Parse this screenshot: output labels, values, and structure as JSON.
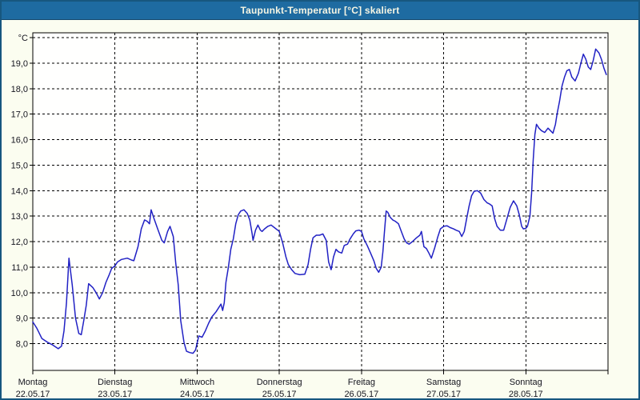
{
  "window": {
    "title": "Taupunkt-Temperatur [°C] skaliert"
  },
  "colors": {
    "titlebar_bg": "#1e6ba1",
    "window_border": "#17577f",
    "page_bg": "#fbfdf0",
    "plot_bg": "#fffffe",
    "grid": "#000000",
    "text": "#15151f",
    "line": "#2121c4",
    "title_text": "#f6f6e4"
  },
  "chart_data": {
    "type": "line",
    "title": "Taupunkt-Temperatur [°C] skaliert",
    "xlabel": "",
    "ylabel": "°C",
    "grid": "dashed",
    "legend_position": "none",
    "y_axis": {
      "min": 6.95,
      "max": 20.2,
      "gridline_values": [
        8,
        9,
        10,
        11,
        12,
        13,
        14,
        15,
        16,
        17,
        18,
        19,
        20
      ],
      "tick_labels": [
        {
          "value": 20,
          "label": "°C"
        },
        {
          "value": 19,
          "label": "19,0"
        },
        {
          "value": 18,
          "label": "18,0"
        },
        {
          "value": 17,
          "label": "17,0"
        },
        {
          "value": 16,
          "label": "16,0"
        },
        {
          "value": 15,
          "label": "15,0"
        },
        {
          "value": 14,
          "label": "14,0"
        },
        {
          "value": 13,
          "label": "13,0"
        },
        {
          "value": 12,
          "label": "12,0"
        },
        {
          "value": 11,
          "label": "11,0"
        },
        {
          "value": 10,
          "label": "10,0"
        },
        {
          "value": 9,
          "label": "9,0"
        },
        {
          "value": 8,
          "label": "8,0"
        }
      ]
    },
    "x_axis": {
      "span_days": 7,
      "gridline_days": [
        1,
        2,
        3,
        4,
        5,
        6
      ],
      "tick_days": [
        0,
        1,
        2,
        3,
        4,
        5,
        6,
        7
      ],
      "day_labels": [
        {
          "day": 0,
          "name": "Montag",
          "date": "22.05.17"
        },
        {
          "day": 1,
          "name": "Dienstag",
          "date": "23.05.17"
        },
        {
          "day": 2,
          "name": "Mittwoch",
          "date": "24.05.17"
        },
        {
          "day": 3,
          "name": "Donnerstag",
          "date": "25.05.17"
        },
        {
          "day": 4,
          "name": "Freitag",
          "date": "26.05.17"
        },
        {
          "day": 5,
          "name": "Samstag",
          "date": "27.05.17"
        },
        {
          "day": 6,
          "name": "Sonntag",
          "date": "28.05.17"
        }
      ]
    },
    "series": [
      {
        "name": "Taupunkt-Temperatur",
        "color": "#2121c4",
        "points": [
          [
            0.0,
            8.85
          ],
          [
            0.05,
            8.6
          ],
          [
            0.11,
            8.2
          ],
          [
            0.18,
            8.05
          ],
          [
            0.24,
            7.95
          ],
          [
            0.31,
            7.8
          ],
          [
            0.35,
            7.9
          ],
          [
            0.38,
            8.5
          ],
          [
            0.41,
            9.6
          ],
          [
            0.44,
            11.35
          ],
          [
            0.48,
            10.3
          ],
          [
            0.52,
            9.0
          ],
          [
            0.56,
            8.4
          ],
          [
            0.59,
            8.35
          ],
          [
            0.62,
            8.9
          ],
          [
            0.65,
            9.5
          ],
          [
            0.68,
            10.35
          ],
          [
            0.73,
            10.2
          ],
          [
            0.77,
            10.0
          ],
          [
            0.81,
            9.75
          ],
          [
            0.85,
            10.0
          ],
          [
            0.89,
            10.4
          ],
          [
            0.93,
            10.7
          ],
          [
            0.96,
            10.95
          ],
          [
            1.0,
            11.05
          ],
          [
            1.03,
            11.2
          ],
          [
            1.08,
            11.3
          ],
          [
            1.15,
            11.35
          ],
          [
            1.2,
            11.28
          ],
          [
            1.23,
            11.25
          ],
          [
            1.28,
            11.8
          ],
          [
            1.32,
            12.5
          ],
          [
            1.36,
            12.85
          ],
          [
            1.39,
            12.8
          ],
          [
            1.42,
            12.7
          ],
          [
            1.44,
            13.25
          ],
          [
            1.47,
            12.95
          ],
          [
            1.52,
            12.5
          ],
          [
            1.57,
            12.05
          ],
          [
            1.6,
            11.95
          ],
          [
            1.64,
            12.4
          ],
          [
            1.67,
            12.6
          ],
          [
            1.71,
            12.2
          ],
          [
            1.74,
            11.15
          ],
          [
            1.77,
            10.3
          ],
          [
            1.8,
            8.9
          ],
          [
            1.84,
            8.05
          ],
          [
            1.87,
            7.7
          ],
          [
            1.91,
            7.65
          ],
          [
            1.95,
            7.62
          ],
          [
            1.98,
            7.75
          ],
          [
            2.02,
            8.3
          ],
          [
            2.06,
            8.25
          ],
          [
            2.1,
            8.5
          ],
          [
            2.14,
            8.8
          ],
          [
            2.18,
            9.05
          ],
          [
            2.23,
            9.25
          ],
          [
            2.27,
            9.45
          ],
          [
            2.29,
            9.55
          ],
          [
            2.31,
            9.3
          ],
          [
            2.33,
            9.6
          ],
          [
            2.35,
            10.4
          ],
          [
            2.38,
            11.0
          ],
          [
            2.41,
            11.7
          ],
          [
            2.44,
            12.1
          ],
          [
            2.47,
            12.7
          ],
          [
            2.5,
            13.05
          ],
          [
            2.53,
            13.2
          ],
          [
            2.57,
            13.25
          ],
          [
            2.61,
            13.1
          ],
          [
            2.64,
            12.85
          ],
          [
            2.67,
            12.3
          ],
          [
            2.68,
            12.05
          ],
          [
            2.71,
            12.45
          ],
          [
            2.74,
            12.65
          ],
          [
            2.77,
            12.45
          ],
          [
            2.79,
            12.4
          ],
          [
            2.82,
            12.5
          ],
          [
            2.86,
            12.6
          ],
          [
            2.9,
            12.65
          ],
          [
            2.94,
            12.55
          ],
          [
            2.98,
            12.45
          ],
          [
            3.0,
            12.4
          ],
          [
            3.04,
            11.95
          ],
          [
            3.08,
            11.4
          ],
          [
            3.11,
            11.1
          ],
          [
            3.15,
            10.9
          ],
          [
            3.19,
            10.75
          ],
          [
            3.25,
            10.7
          ],
          [
            3.31,
            10.72
          ],
          [
            3.35,
            11.1
          ],
          [
            3.38,
            11.7
          ],
          [
            3.41,
            12.15
          ],
          [
            3.45,
            12.25
          ],
          [
            3.49,
            12.25
          ],
          [
            3.53,
            12.3
          ],
          [
            3.57,
            12.05
          ],
          [
            3.6,
            11.2
          ],
          [
            3.63,
            10.9
          ],
          [
            3.66,
            11.4
          ],
          [
            3.69,
            11.7
          ],
          [
            3.72,
            11.6
          ],
          [
            3.76,
            11.55
          ],
          [
            3.79,
            11.85
          ],
          [
            3.83,
            11.9
          ],
          [
            3.86,
            12.1
          ],
          [
            3.9,
            12.3
          ],
          [
            3.93,
            12.42
          ],
          [
            3.97,
            12.45
          ],
          [
            4.0,
            12.4
          ],
          [
            4.03,
            12.1
          ],
          [
            4.07,
            11.85
          ],
          [
            4.11,
            11.55
          ],
          [
            4.15,
            11.25
          ],
          [
            4.18,
            10.95
          ],
          [
            4.21,
            10.8
          ],
          [
            4.24,
            11.0
          ],
          [
            4.26,
            11.6
          ],
          [
            4.28,
            12.4
          ],
          [
            4.3,
            13.2
          ],
          [
            4.32,
            13.15
          ],
          [
            4.35,
            12.95
          ],
          [
            4.38,
            12.85
          ],
          [
            4.41,
            12.8
          ],
          [
            4.45,
            12.7
          ],
          [
            4.49,
            12.35
          ],
          [
            4.52,
            12.1
          ],
          [
            4.55,
            11.95
          ],
          [
            4.58,
            11.9
          ],
          [
            4.62,
            12.0
          ],
          [
            4.67,
            12.15
          ],
          [
            4.71,
            12.25
          ],
          [
            4.73,
            12.4
          ],
          [
            4.76,
            11.8
          ],
          [
            4.79,
            11.73
          ],
          [
            4.82,
            11.55
          ],
          [
            4.85,
            11.35
          ],
          [
            4.89,
            11.75
          ],
          [
            4.93,
            12.2
          ],
          [
            4.96,
            12.5
          ],
          [
            5.0,
            12.6
          ],
          [
            5.04,
            12.62
          ],
          [
            5.08,
            12.55
          ],
          [
            5.12,
            12.5
          ],
          [
            5.15,
            12.45
          ],
          [
            5.19,
            12.4
          ],
          [
            5.22,
            12.2
          ],
          [
            5.25,
            12.4
          ],
          [
            5.28,
            12.9
          ],
          [
            5.31,
            13.4
          ],
          [
            5.34,
            13.8
          ],
          [
            5.37,
            13.97
          ],
          [
            5.41,
            14.0
          ],
          [
            5.45,
            13.9
          ],
          [
            5.49,
            13.65
          ],
          [
            5.53,
            13.52
          ],
          [
            5.56,
            13.47
          ],
          [
            5.59,
            13.4
          ],
          [
            5.62,
            12.9
          ],
          [
            5.65,
            12.6
          ],
          [
            5.69,
            12.45
          ],
          [
            5.73,
            12.45
          ],
          [
            5.77,
            12.9
          ],
          [
            5.81,
            13.35
          ],
          [
            5.85,
            13.6
          ],
          [
            5.89,
            13.4
          ],
          [
            5.92,
            13.05
          ],
          [
            5.95,
            12.6
          ],
          [
            5.97,
            12.5
          ],
          [
            6.0,
            12.52
          ],
          [
            6.02,
            12.6
          ],
          [
            6.05,
            13.0
          ],
          [
            6.07,
            13.9
          ],
          [
            6.09,
            15.2
          ],
          [
            6.11,
            16.2
          ],
          [
            6.13,
            16.6
          ],
          [
            6.16,
            16.45
          ],
          [
            6.19,
            16.35
          ],
          [
            6.23,
            16.28
          ],
          [
            6.27,
            16.45
          ],
          [
            6.3,
            16.35
          ],
          [
            6.33,
            16.25
          ],
          [
            6.36,
            16.6
          ],
          [
            6.38,
            17.0
          ],
          [
            6.41,
            17.5
          ],
          [
            6.44,
            18.1
          ],
          [
            6.47,
            18.45
          ],
          [
            6.5,
            18.7
          ],
          [
            6.53,
            18.75
          ],
          [
            6.56,
            18.45
          ],
          [
            6.6,
            18.3
          ],
          [
            6.64,
            18.6
          ],
          [
            6.67,
            19.0
          ],
          [
            6.7,
            19.35
          ],
          [
            6.73,
            19.15
          ],
          [
            6.76,
            18.85
          ],
          [
            6.79,
            18.75
          ],
          [
            6.82,
            19.1
          ],
          [
            6.85,
            19.55
          ],
          [
            6.89,
            19.4
          ],
          [
            6.92,
            19.15
          ],
          [
            6.95,
            18.8
          ],
          [
            6.98,
            18.55
          ]
        ]
      }
    ]
  }
}
